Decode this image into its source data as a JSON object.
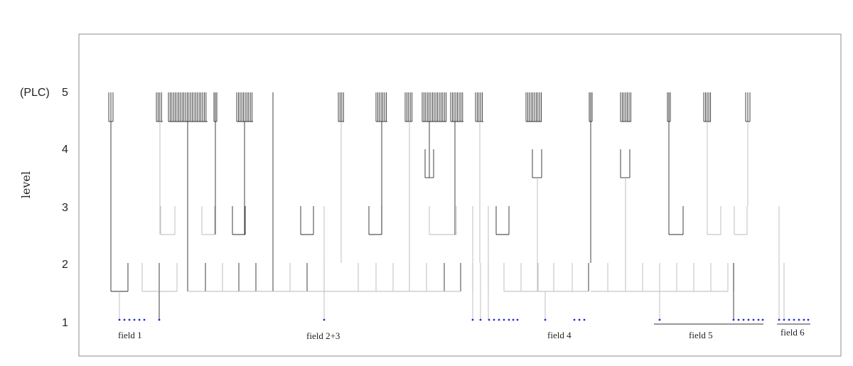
{
  "y_axis": {
    "title": "level",
    "ticks": [
      "1",
      "2",
      "3",
      "4",
      "5"
    ],
    "top_prefix": "(PLC)"
  },
  "fields": [
    {
      "label": "field 1"
    },
    {
      "label": "field 2+3"
    },
    {
      "label": "field 4"
    },
    {
      "label": "field 5"
    },
    {
      "label": "field 6"
    }
  ],
  "colors": {
    "dark": "#2b2b2b",
    "light": "#b9b9b9",
    "leaf": "#1f2bd6"
  }
}
